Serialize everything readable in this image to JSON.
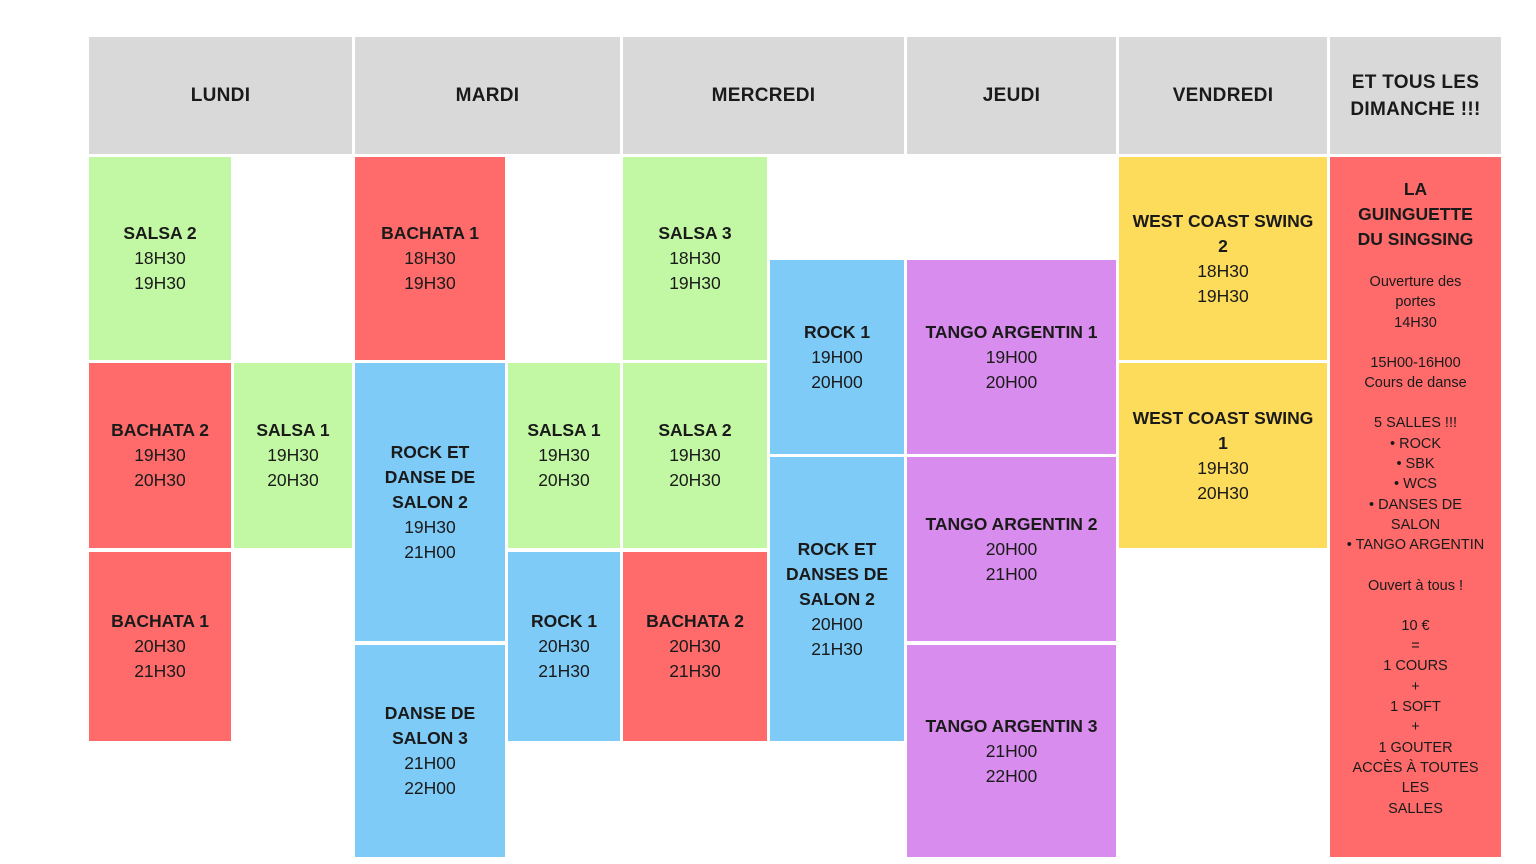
{
  "headers": {
    "lundi": "LUNDI",
    "mardi": "MARDI",
    "mercredi": "MERCREDI",
    "jeudi": "JEUDI",
    "vendredi": "VENDREDI",
    "dimanche_line1": "ET TOUS LES",
    "dimanche_line2": "DIMANCHE !!!"
  },
  "colors": {
    "header": "#d9d9d9",
    "green": "#c2f8a3",
    "red": "#ff6b6b",
    "blue": "#7ecbf8",
    "purple": "#d88ced",
    "yellow": "#fddc5c"
  },
  "courses": {
    "lundi_salsa2": {
      "lines": [
        "SALSA 2"
      ],
      "start": "18H30",
      "end": "19H30",
      "color": "green"
    },
    "lundi_bachata2": {
      "lines": [
        "BACHATA 2"
      ],
      "start": "19H30",
      "end": "20H30",
      "color": "red"
    },
    "lundi_salsa1": {
      "lines": [
        "SALSA 1"
      ],
      "start": "19H30",
      "end": "20H30",
      "color": "green"
    },
    "lundi_bachata1": {
      "lines": [
        "BACHATA 1"
      ],
      "start": "20H30",
      "end": "21H30",
      "color": "red"
    },
    "mardi_bachata1": {
      "lines": [
        "BACHATA 1"
      ],
      "start": "18H30",
      "end": "19H30",
      "color": "red"
    },
    "mardi_rock_salon2": {
      "lines": [
        "ROCK ET",
        "DANSE DE",
        "SALON 2"
      ],
      "start": "19H30",
      "end": "21H00",
      "color": "blue"
    },
    "mardi_salsa1": {
      "lines": [
        "SALSA 1"
      ],
      "start": "19H30",
      "end": "20H30",
      "color": "green"
    },
    "mardi_rock1": {
      "lines": [
        "ROCK 1"
      ],
      "start": "20H30",
      "end": "21H30",
      "color": "blue"
    },
    "mardi_salon3": {
      "lines": [
        "DANSE DE",
        "SALON 3"
      ],
      "start": "21H00",
      "end": "22H00",
      "color": "blue"
    },
    "mercredi_salsa3": {
      "lines": [
        "SALSA 3"
      ],
      "start": "18H30",
      "end": "19H30",
      "color": "green"
    },
    "mercredi_salsa2": {
      "lines": [
        "SALSA 2"
      ],
      "start": "19H30",
      "end": "20H30",
      "color": "green"
    },
    "mercredi_bachata2": {
      "lines": [
        "BACHATA 2"
      ],
      "start": "20H30",
      "end": "21H30",
      "color": "red"
    },
    "mercredi_rock1": {
      "lines": [
        "ROCK 1"
      ],
      "start": "19H00",
      "end": "20H00",
      "color": "blue"
    },
    "mercredi_rock_salons2": {
      "lines": [
        "ROCK ET",
        "DANSES DE",
        "SALON 2"
      ],
      "start": "20H00",
      "end": "21H30",
      "color": "blue"
    },
    "jeudi_tango1": {
      "lines": [
        "TANGO ARGENTIN 1"
      ],
      "start": "19H00",
      "end": "20H00",
      "color": "purple"
    },
    "jeudi_tango2": {
      "lines": [
        "TANGO ARGENTIN 2"
      ],
      "start": "20H00",
      "end": "21H00",
      "color": "purple"
    },
    "jeudi_tango3": {
      "lines": [
        "TANGO ARGENTIN 3"
      ],
      "start": "21H00",
      "end": "22H00",
      "color": "purple"
    },
    "vendredi_wcs2": {
      "lines": [
        "WEST COAST SWING",
        "2"
      ],
      "start": "18H30",
      "end": "19H30",
      "color": "yellow"
    },
    "vendredi_wcs1": {
      "lines": [
        "WEST COAST SWING",
        "1"
      ],
      "start": "19H30",
      "end": "20H30",
      "color": "yellow"
    }
  },
  "sunday": {
    "title": [
      "LA",
      "GUINGUETTE",
      "DU SINGSING"
    ],
    "blocks": [
      [
        "Ouverture des",
        "portes",
        "14H30"
      ],
      [
        "15H00-16H00",
        "Cours de danse"
      ],
      [
        "5 SALLES !!!",
        "• ROCK",
        "• SBK",
        "• WCS",
        "• DANSES DE",
        "SALON",
        "• TANGO ARGENTIN"
      ],
      [
        "Ouvert à tous !"
      ],
      [
        "10 €",
        "=",
        "1 COURS",
        "+",
        "1 SOFT",
        "+",
        "1 GOUTER",
        "ACCÈS À TOUTES",
        "LES",
        "SALLES"
      ]
    ]
  }
}
